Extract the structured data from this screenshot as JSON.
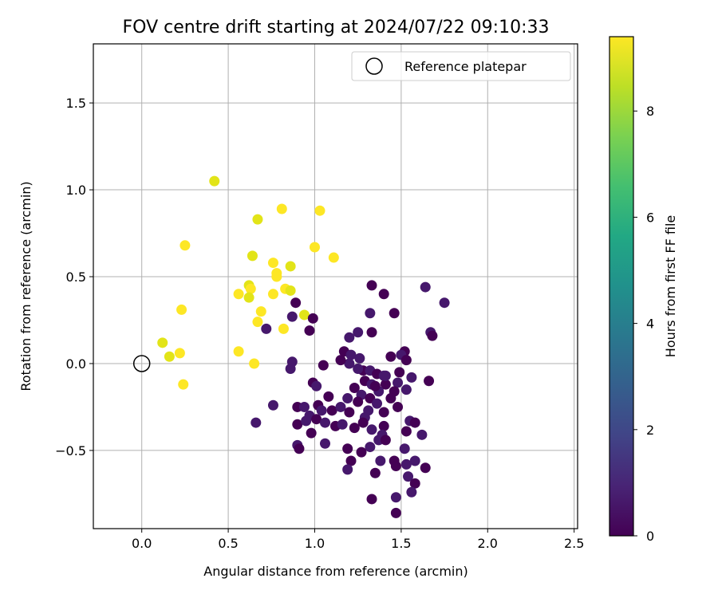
{
  "chart_data": {
    "type": "scatter",
    "title": "FOV centre drift starting at 2024/07/22 09:10:33",
    "xlabel": "Angular distance from reference (arcmin)",
    "ylabel": "Rotation from reference (arcmin)",
    "xlim": [
      -0.28,
      2.52
    ],
    "ylim": [
      -0.95,
      1.84
    ],
    "xticks": [
      0.0,
      0.5,
      1.0,
      1.5,
      2.0,
      2.5
    ],
    "xtick_labels": [
      "0.0",
      "0.5",
      "1.0",
      "1.5",
      "2.0",
      "2.5"
    ],
    "yticks": [
      -0.5,
      0.0,
      0.5,
      1.0,
      1.5
    ],
    "ytick_labels": [
      "−0.5",
      "0.0",
      "0.5",
      "1.0",
      "1.5"
    ],
    "grid": true,
    "legend": {
      "position": "top-right",
      "entries": [
        "Reference platepar"
      ]
    },
    "reference_point": {
      "label": "Reference platepar",
      "x": 0.0,
      "y": 0.0,
      "marker": "open-circle"
    },
    "colorbar": {
      "label": "Hours from first FF file",
      "colormap": "viridis",
      "range": [
        0,
        9.4
      ],
      "ticks": [
        0,
        2,
        4,
        6,
        8
      ],
      "tick_labels": [
        "0",
        "2",
        "4",
        "6",
        "8"
      ]
    },
    "colors": {
      "late": "#fde725",
      "late_alt": "#e2e418",
      "early": "#440154",
      "early_alt": "#46186c"
    },
    "points_late": [
      [
        0.42,
        1.05
      ],
      [
        0.81,
        0.89
      ],
      [
        1.03,
        0.88
      ],
      [
        0.67,
        0.83
      ],
      [
        0.25,
        0.68
      ],
      [
        1.0,
        0.67
      ],
      [
        0.64,
        0.62
      ],
      [
        1.11,
        0.61
      ],
      [
        0.76,
        0.58
      ],
      [
        0.86,
        0.56
      ],
      [
        0.78,
        0.52
      ],
      [
        0.78,
        0.5
      ],
      [
        0.62,
        0.45
      ],
      [
        0.63,
        0.43
      ],
      [
        0.83,
        0.43
      ],
      [
        0.86,
        0.42
      ],
      [
        0.56,
        0.4
      ],
      [
        0.76,
        0.4
      ],
      [
        0.62,
        0.38
      ],
      [
        0.69,
        0.3
      ],
      [
        0.23,
        0.31
      ],
      [
        0.94,
        0.28
      ],
      [
        0.67,
        0.24
      ],
      [
        0.82,
        0.2
      ],
      [
        0.12,
        0.12
      ],
      [
        0.56,
        0.07
      ],
      [
        0.22,
        0.06
      ],
      [
        0.16,
        0.04
      ],
      [
        0.65,
        0.0
      ],
      [
        0.24,
        -0.12
      ]
    ],
    "points_early": [
      [
        1.33,
        0.45
      ],
      [
        1.64,
        0.44
      ],
      [
        1.4,
        0.4
      ],
      [
        1.75,
        0.35
      ],
      [
        0.89,
        0.35
      ],
      [
        1.32,
        0.29
      ],
      [
        1.46,
        0.29
      ],
      [
        0.87,
        0.27
      ],
      [
        0.99,
        0.26
      ],
      [
        1.67,
        0.18
      ],
      [
        1.68,
        0.16
      ],
      [
        0.72,
        0.2
      ],
      [
        0.97,
        0.19
      ],
      [
        1.25,
        0.18
      ],
      [
        1.33,
        0.18
      ],
      [
        1.2,
        0.15
      ],
      [
        1.17,
        0.07
      ],
      [
        1.21,
        0.05
      ],
      [
        1.52,
        0.07
      ],
      [
        1.5,
        0.05
      ],
      [
        1.44,
        0.04
      ],
      [
        1.26,
        0.03
      ],
      [
        1.53,
        0.02
      ],
      [
        0.87,
        0.01
      ],
      [
        1.05,
        -0.01
      ],
      [
        1.2,
        0.0
      ],
      [
        1.28,
        -0.04
      ],
      [
        1.32,
        -0.04
      ],
      [
        1.36,
        -0.06
      ],
      [
        1.4,
        -0.07
      ],
      [
        1.49,
        -0.05
      ],
      [
        1.56,
        -0.08
      ],
      [
        1.66,
        -0.1
      ],
      [
        0.86,
        -0.03
      ],
      [
        0.99,
        -0.11
      ],
      [
        1.01,
        -0.13
      ],
      [
        1.29,
        -0.1
      ],
      [
        1.33,
        -0.12
      ],
      [
        1.41,
        -0.12
      ],
      [
        1.48,
        -0.11
      ],
      [
        1.23,
        -0.14
      ],
      [
        1.27,
        -0.18
      ],
      [
        1.32,
        -0.2
      ],
      [
        1.37,
        -0.16
      ],
      [
        1.46,
        -0.16
      ],
      [
        1.53,
        -0.15
      ],
      [
        1.08,
        -0.19
      ],
      [
        1.19,
        -0.2
      ],
      [
        1.25,
        -0.22
      ],
      [
        1.36,
        -0.23
      ],
      [
        1.4,
        -0.28
      ],
      [
        0.76,
        -0.24
      ],
      [
        0.9,
        -0.25
      ],
      [
        0.94,
        -0.25
      ],
      [
        1.02,
        -0.24
      ],
      [
        1.04,
        -0.27
      ],
      [
        1.1,
        -0.27
      ],
      [
        1.15,
        -0.25
      ],
      [
        1.2,
        -0.28
      ],
      [
        1.29,
        -0.31
      ],
      [
        1.48,
        -0.25
      ],
      [
        0.97,
        -0.3
      ],
      [
        1.01,
        -0.32
      ],
      [
        1.06,
        -0.34
      ],
      [
        1.12,
        -0.36
      ],
      [
        1.16,
        -0.35
      ],
      [
        1.23,
        -0.37
      ],
      [
        1.33,
        -0.38
      ],
      [
        1.4,
        -0.36
      ],
      [
        1.55,
        -0.33
      ],
      [
        1.58,
        -0.34
      ],
      [
        0.66,
        -0.34
      ],
      [
        0.9,
        -0.35
      ],
      [
        0.95,
        -0.33
      ],
      [
        1.28,
        -0.34
      ],
      [
        1.39,
        -0.41
      ],
      [
        1.53,
        -0.39
      ],
      [
        1.62,
        -0.41
      ],
      [
        0.98,
        -0.4
      ],
      [
        1.37,
        -0.44
      ],
      [
        1.41,
        -0.44
      ],
      [
        0.9,
        -0.47
      ],
      [
        0.91,
        -0.49
      ],
      [
        1.06,
        -0.46
      ],
      [
        1.19,
        -0.49
      ],
      [
        1.32,
        -0.48
      ],
      [
        1.27,
        -0.51
      ],
      [
        1.52,
        -0.49
      ],
      [
        1.21,
        -0.56
      ],
      [
        1.38,
        -0.56
      ],
      [
        1.46,
        -0.56
      ],
      [
        1.58,
        -0.56
      ],
      [
        1.47,
        -0.59
      ],
      [
        1.53,
        -0.58
      ],
      [
        1.64,
        -0.6
      ],
      [
        1.19,
        -0.61
      ],
      [
        1.35,
        -0.63
      ],
      [
        1.54,
        -0.65
      ],
      [
        1.58,
        -0.69
      ],
      [
        1.56,
        -0.74
      ],
      [
        1.33,
        -0.78
      ],
      [
        1.47,
        -0.77
      ],
      [
        1.47,
        -0.86
      ],
      [
        1.41,
        -0.07
      ],
      [
        1.35,
        -0.13
      ],
      [
        1.25,
        -0.03
      ],
      [
        1.44,
        -0.2
      ],
      [
        1.31,
        -0.27
      ],
      [
        1.15,
        0.02
      ]
    ]
  }
}
